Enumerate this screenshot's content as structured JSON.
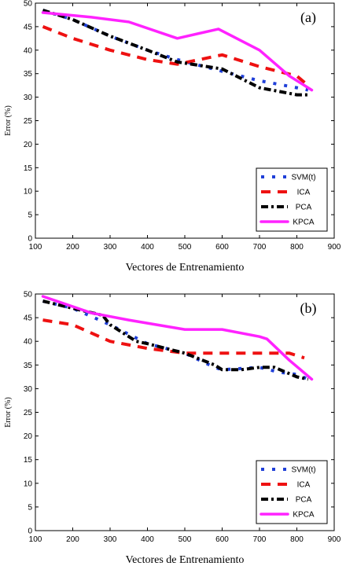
{
  "colors": {
    "svm": "#1f3fd8",
    "ica": "#ee1111",
    "pca": "#000000",
    "kpca": "#ff22ff"
  },
  "chart_data": [
    {
      "type": "line",
      "panel_label": "(a)",
      "xlabel": "Vectores de Entrenamiento",
      "ylabel": "Error (%)",
      "xlim": [
        100,
        900
      ],
      "ylim": [
        0,
        50
      ],
      "xticks": [
        100,
        200,
        300,
        400,
        500,
        600,
        700,
        800,
        900
      ],
      "yticks": [
        0,
        5,
        10,
        15,
        20,
        25,
        30,
        35,
        40,
        45,
        50
      ],
      "legend_position": "bottom-right",
      "series": [
        {
          "name": "SVM(t)",
          "style": "dotted",
          "x": [
            120,
            200,
            300,
            400,
            480,
            600,
            700,
            800,
            830
          ],
          "y": [
            48.5,
            46.5,
            43,
            40,
            38,
            35.5,
            33.5,
            32,
            31.5
          ]
        },
        {
          "name": "ICA",
          "style": "dashed",
          "x": [
            120,
            200,
            300,
            400,
            480,
            600,
            700,
            800,
            830
          ],
          "y": [
            45,
            42.5,
            40,
            38,
            37,
            39,
            36.5,
            34.5,
            32.5
          ]
        },
        {
          "name": "PCA",
          "style": "dashdot",
          "x": [
            120,
            200,
            300,
            400,
            480,
            600,
            700,
            800,
            830
          ],
          "y": [
            48.5,
            46.5,
            43,
            40,
            37.5,
            36,
            32,
            30.5,
            30.5
          ]
        },
        {
          "name": "KPCA",
          "style": "solid",
          "x": [
            120,
            250,
            350,
            480,
            590,
            700,
            780,
            840
          ],
          "y": [
            48,
            47,
            46,
            42.5,
            44.5,
            40,
            34.5,
            31.5
          ]
        }
      ]
    },
    {
      "type": "line",
      "panel_label": "(b)",
      "xlabel": "Vectores de Entrenamiento",
      "ylabel": "Error (%)",
      "xlim": [
        100,
        900
      ],
      "ylim": [
        0,
        50
      ],
      "xticks": [
        100,
        200,
        300,
        400,
        500,
        600,
        700,
        800,
        900
      ],
      "yticks": [
        0,
        5,
        10,
        15,
        20,
        25,
        30,
        35,
        40,
        45,
        50
      ],
      "legend_position": "bottom-right",
      "series": [
        {
          "name": "SVM(t)",
          "style": "dotted",
          "x": [
            120,
            200,
            300,
            400,
            500,
            580,
            600,
            700,
            750,
            800,
            830
          ],
          "y": [
            48.5,
            47,
            43.5,
            39.5,
            37.5,
            34.5,
            34,
            34.5,
            33.5,
            33,
            32
          ]
        },
        {
          "name": "ICA",
          "style": "dashed",
          "x": [
            120,
            200,
            300,
            400,
            500,
            600,
            700,
            780,
            820
          ],
          "y": [
            44.5,
            43.5,
            40,
            38.5,
            37.5,
            37.5,
            37.5,
            37.5,
            36.5
          ]
        },
        {
          "name": "PCA",
          "style": "dashdot",
          "x": [
            120,
            200,
            280,
            300,
            370,
            400,
            500,
            580,
            600,
            650,
            700,
            740,
            800,
            830
          ],
          "y": [
            48.5,
            47,
            45.5,
            43.5,
            40,
            39.5,
            37.5,
            35,
            34,
            34,
            34.5,
            34.5,
            32.5,
            32
          ]
        },
        {
          "name": "KPCA",
          "style": "solid",
          "x": [
            120,
            250,
            350,
            500,
            600,
            700,
            720,
            780,
            840
          ],
          "y": [
            49.5,
            46,
            44.5,
            42.5,
            42.5,
            41,
            40.5,
            36,
            32
          ]
        }
      ]
    }
  ]
}
